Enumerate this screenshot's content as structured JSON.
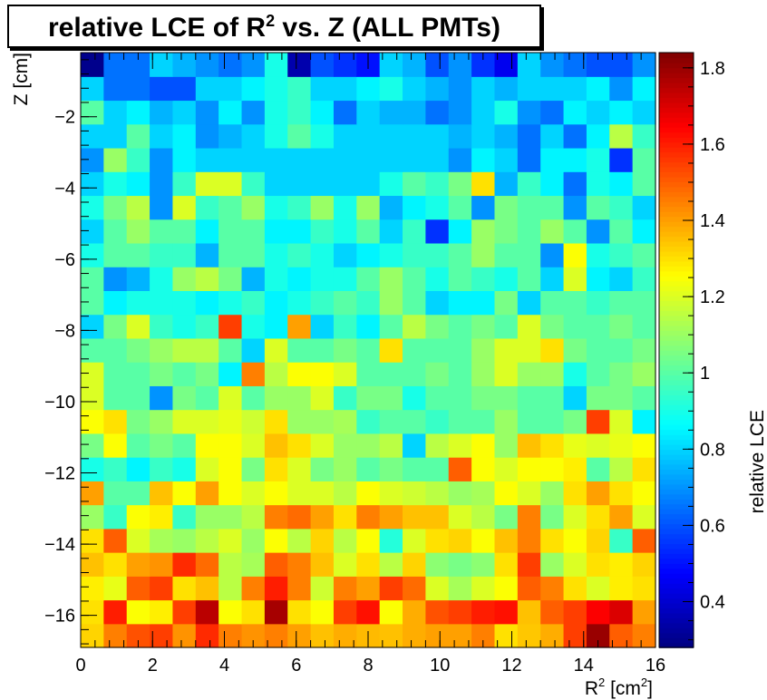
{
  "chart_data": {
    "type": "heatmap",
    "title": "relative LCE of R",
    "title_sup": "2",
    "title_suffix": " vs. Z (ALL PMTs)",
    "xlabel": "R",
    "xlabel_sup": "2",
    "xlabel_suffix": " [cm",
    "xlabel_sup2": "2",
    "xlabel_end": "]",
    "ylabel": "Z [cm]",
    "zlabel": "relative LCE",
    "xlim": [
      0,
      16
    ],
    "ylim": [
      -16.9,
      -0.2
    ],
    "zlim": [
      0.28,
      1.84
    ],
    "x_ticks": [
      0,
      2,
      4,
      6,
      8,
      10,
      12,
      14,
      16
    ],
    "x_tick_labels": [
      "0",
      "2",
      "4",
      "6",
      "8",
      "10",
      "12",
      "14",
      "16"
    ],
    "y_ticks": [
      -2,
      -4,
      -6,
      -8,
      -10,
      -12,
      -14,
      -16
    ],
    "y_tick_labels": [
      "−2",
      "−4",
      "−6",
      "−8",
      "−10",
      "−12",
      "−14",
      "−16"
    ],
    "z_ticks": [
      0.4,
      0.6,
      0.8,
      1.0,
      1.2,
      1.4,
      1.6,
      1.8
    ],
    "z_tick_labels": [
      "0.4",
      "0.6",
      "0.8",
      "1",
      "1.2",
      "1.4",
      "1.6",
      "1.8"
    ],
    "nx": 25,
    "ny": 25,
    "colormap": [
      "#00007f",
      "#0000ff",
      "#007fff",
      "#00ffff",
      "#7fff7f",
      "#ffff00",
      "#ff7f00",
      "#ff0000",
      "#7f0000"
    ],
    "values": [
      [
        1.32,
        1.45,
        1.52,
        1.55,
        1.42,
        1.58,
        1.45,
        1.42,
        1.45,
        1.4,
        1.35,
        1.38,
        1.36,
        1.35,
        1.38,
        1.4,
        1.4,
        1.45,
        1.3,
        1.34,
        1.38,
        1.55,
        1.8,
        1.5,
        1.45
      ],
      [
        1.3,
        1.6,
        1.25,
        1.28,
        1.55,
        1.75,
        1.25,
        1.3,
        1.78,
        1.3,
        1.25,
        1.55,
        1.62,
        1.25,
        1.38,
        1.52,
        1.55,
        1.6,
        1.62,
        1.35,
        1.5,
        1.55,
        1.65,
        1.7,
        1.4
      ],
      [
        1.28,
        1.22,
        1.5,
        1.55,
        1.3,
        1.35,
        1.15,
        1.45,
        1.6,
        1.45,
        1.18,
        1.45,
        1.4,
        1.55,
        1.48,
        1.2,
        1.12,
        1.2,
        1.25,
        1.5,
        1.45,
        1.3,
        1.2,
        1.28,
        1.3
      ],
      [
        1.35,
        1.3,
        1.4,
        1.42,
        1.58,
        1.48,
        1.15,
        1.12,
        1.5,
        1.45,
        1.35,
        1.2,
        1.3,
        1.15,
        1.32,
        1.08,
        1.05,
        1.08,
        1.3,
        1.55,
        1.1,
        1.2,
        1.3,
        1.28,
        1.32
      ],
      [
        1.3,
        1.5,
        1.2,
        1.12,
        1.1,
        1.15,
        1.2,
        1.1,
        1.25,
        1.15,
        1.32,
        1.15,
        1.25,
        0.92,
        1.2,
        1.3,
        1.32,
        1.25,
        1.35,
        1.45,
        1.3,
        1.25,
        1.32,
        0.95,
        1.5
      ],
      [
        1.1,
        0.95,
        1.25,
        1.28,
        0.95,
        1.1,
        1.1,
        1.15,
        1.45,
        1.48,
        1.4,
        1.3,
        1.45,
        1.4,
        1.35,
        1.35,
        1.2,
        1.15,
        1.05,
        1.45,
        1.05,
        1.2,
        1.3,
        1.4,
        1.2
      ],
      [
        1.4,
        1.0,
        1.0,
        1.35,
        1.25,
        1.4,
        1.25,
        1.2,
        1.25,
        1.2,
        1.2,
        1.15,
        1.25,
        1.2,
        1.18,
        1.15,
        1.1,
        1.12,
        1.25,
        1.2,
        1.1,
        1.3,
        1.4,
        1.3,
        1.25
      ],
      [
        0.9,
        0.95,
        0.85,
        0.95,
        0.9,
        1.2,
        1.25,
        1.05,
        1.3,
        1.2,
        1.05,
        1.1,
        1.0,
        1.05,
        1.0,
        1.0,
        1.5,
        1.25,
        1.2,
        1.25,
        1.25,
        1.28,
        1.0,
        1.15,
        1.3
      ],
      [
        1.05,
        1.25,
        1.0,
        1.05,
        1.0,
        1.25,
        1.25,
        1.2,
        1.35,
        1.3,
        1.2,
        1.1,
        1.1,
        1.15,
        0.8,
        1.15,
        1.2,
        1.25,
        1.1,
        1.35,
        1.3,
        1.22,
        1.2,
        1.22,
        1.25
      ],
      [
        1.25,
        1.3,
        1.05,
        1.1,
        1.2,
        1.2,
        1.22,
        1.18,
        1.3,
        1.1,
        1.1,
        1.12,
        0.95,
        1.0,
        1.0,
        0.95,
        1.0,
        1.0,
        1.1,
        1.0,
        1.0,
        1.05,
        1.55,
        1.2,
        0.85
      ],
      [
        1.2,
        1.0,
        1.0,
        0.7,
        1.05,
        1.0,
        1.2,
        1.0,
        1.1,
        1.1,
        1.2,
        0.95,
        1.05,
        1.05,
        0.9,
        1.0,
        1.0,
        1.05,
        1.05,
        1.0,
        1.0,
        0.8,
        1.05,
        1.05,
        1.0
      ],
      [
        1.2,
        1.0,
        1.0,
        1.05,
        1.0,
        1.05,
        0.85,
        1.45,
        1.15,
        1.25,
        1.25,
        1.2,
        1.0,
        1.0,
        1.0,
        1.05,
        1.0,
        1.1,
        1.2,
        1.1,
        1.1,
        0.9,
        1.0,
        1.05,
        1.1
      ],
      [
        1.0,
        1.0,
        1.05,
        1.1,
        1.15,
        1.15,
        1.0,
        0.8,
        1.2,
        1.0,
        1.0,
        1.05,
        1.0,
        1.3,
        1.0,
        1.0,
        1.0,
        1.1,
        1.2,
        1.2,
        1.3,
        1.05,
        1.0,
        1.0,
        1.05
      ],
      [
        0.8,
        1.05,
        1.2,
        0.95,
        0.9,
        0.95,
        1.55,
        0.9,
        0.85,
        1.4,
        0.8,
        0.95,
        0.85,
        1.0,
        1.15,
        1.05,
        1.0,
        1.05,
        1.0,
        1.2,
        1.05,
        1.0,
        1.0,
        1.05,
        1.0
      ],
      [
        1.0,
        0.85,
        0.9,
        0.9,
        0.9,
        0.85,
        0.9,
        0.95,
        0.85,
        0.9,
        0.95,
        1.0,
        0.95,
        1.1,
        1.0,
        0.8,
        0.85,
        0.85,
        1.05,
        0.8,
        1.0,
        1.0,
        0.95,
        1.0,
        1.0
      ],
      [
        1.0,
        0.7,
        0.75,
        0.9,
        1.1,
        1.15,
        1.05,
        0.75,
        0.9,
        0.85,
        0.9,
        0.9,
        1.0,
        1.1,
        1.0,
        0.9,
        1.0,
        0.95,
        0.9,
        1.0,
        0.8,
        1.2,
        0.85,
        0.8,
        0.95
      ],
      [
        0.9,
        1.0,
        1.0,
        0.95,
        0.95,
        0.75,
        1.0,
        1.0,
        0.9,
        0.95,
        0.9,
        0.8,
        0.85,
        0.9,
        0.95,
        0.95,
        1.0,
        1.1,
        1.0,
        1.0,
        0.7,
        1.25,
        0.9,
        0.95,
        1.0
      ],
      [
        0.8,
        1.0,
        1.1,
        1.0,
        1.0,
        0.85,
        1.0,
        1.0,
        0.85,
        0.85,
        0.95,
        0.9,
        1.0,
        0.8,
        0.95,
        0.55,
        0.85,
        1.1,
        1.05,
        1.0,
        1.1,
        1.0,
        0.7,
        1.0,
        0.85
      ],
      [
        0.9,
        1.05,
        1.15,
        0.7,
        1.2,
        0.95,
        1.0,
        1.1,
        0.9,
        0.95,
        1.1,
        0.9,
        1.1,
        0.75,
        0.85,
        0.9,
        1.0,
        0.7,
        1.05,
        1.0,
        1.0,
        0.7,
        1.0,
        0.95,
        0.8
      ],
      [
        0.8,
        0.9,
        0.85,
        0.7,
        0.95,
        1.2,
        1.2,
        0.95,
        0.8,
        0.8,
        0.8,
        0.8,
        0.8,
        0.9,
        1.0,
        0.95,
        1.05,
        1.3,
        0.75,
        0.95,
        0.85,
        0.65,
        0.9,
        0.85,
        1.0
      ],
      [
        0.7,
        1.1,
        0.95,
        0.7,
        0.85,
        0.8,
        0.8,
        0.8,
        0.8,
        0.8,
        0.8,
        0.8,
        0.8,
        0.8,
        0.8,
        0.8,
        0.7,
        0.85,
        0.8,
        0.65,
        0.85,
        0.85,
        0.9,
        0.55,
        1.0
      ],
      [
        0.8,
        0.8,
        1.0,
        0.8,
        0.85,
        0.7,
        0.75,
        0.8,
        0.9,
        1.0,
        0.9,
        0.8,
        0.8,
        0.8,
        0.8,
        0.8,
        0.75,
        0.8,
        0.75,
        0.65,
        0.8,
        0.65,
        0.85,
        1.15,
        0.95
      ],
      [
        1.0,
        0.8,
        0.85,
        0.75,
        0.8,
        0.7,
        0.85,
        0.7,
        0.9,
        0.95,
        0.85,
        0.65,
        0.8,
        0.75,
        0.75,
        0.65,
        0.7,
        0.8,
        0.9,
        0.7,
        0.65,
        0.85,
        0.8,
        0.85,
        0.8
      ],
      [
        0.8,
        0.65,
        0.65,
        0.6,
        0.6,
        0.8,
        0.8,
        0.85,
        0.9,
        0.95,
        0.8,
        0.8,
        0.85,
        0.9,
        0.8,
        0.75,
        0.7,
        0.8,
        0.75,
        0.8,
        0.8,
        0.8,
        0.85,
        0.7,
        0.85
      ],
      [
        0.3,
        0.65,
        0.65,
        0.8,
        0.75,
        0.7,
        0.65,
        0.7,
        0.9,
        0.35,
        0.6,
        0.55,
        0.5,
        0.8,
        0.75,
        0.6,
        0.7,
        0.55,
        0.45,
        0.8,
        0.7,
        0.65,
        0.6,
        0.6,
        0.7
      ]
    ]
  }
}
